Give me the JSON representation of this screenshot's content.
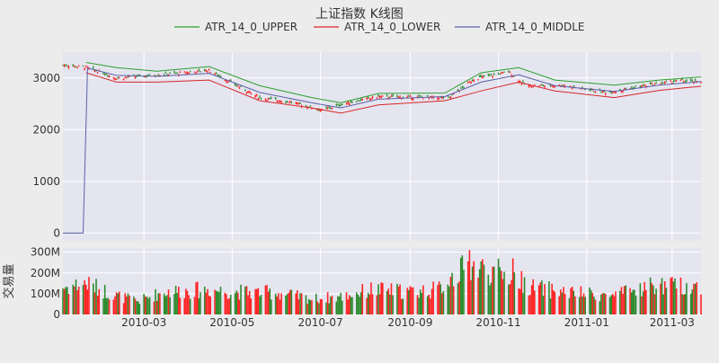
{
  "chart_data": {
    "type": "candlestick",
    "title": "上证指数 K线图",
    "legend": {
      "placement": "top-center",
      "entries": [
        {
          "name": "ATR_14_0_UPPER",
          "color": "#2ca02c"
        },
        {
          "name": "ATR_14_0_LOWER",
          "color": "#d62728"
        },
        {
          "name": "ATR_14_0_MIDDLE",
          "color": "#5b5fa8"
        }
      ]
    },
    "colors": {
      "up": "#ff2222",
      "down": "#2b8a2b",
      "upper": "#2ca02c",
      "lower": "#d62728",
      "middle": "#5b5fa8",
      "grid": "#ffffff",
      "plot_bg": "#e5e5f0"
    },
    "x_range": [
      "2010-01-04",
      "2011-03-21"
    ],
    "x_ticks": [
      {
        "date": "2010-03-01",
        "label": "2010-03"
      },
      {
        "date": "2010-05-01",
        "label": "2010-05"
      },
      {
        "date": "2010-07-01",
        "label": "2010-07"
      },
      {
        "date": "2010-09-01",
        "label": "2010-09"
      },
      {
        "date": "2010-11-01",
        "label": "2010-11"
      },
      {
        "date": "2011-01-01",
        "label": "2011-01"
      },
      {
        "date": "2011-03-01",
        "label": "2011-03"
      }
    ],
    "price_panel": {
      "ylim": [
        -150,
        3500
      ],
      "y_ticks": [
        {
          "value": 0,
          "label": "0"
        },
        {
          "value": 1000,
          "label": "1000"
        },
        {
          "value": 2000,
          "label": "2000"
        },
        {
          "value": 3000,
          "label": "3000"
        }
      ],
      "grid": true,
      "close_path": [
        [
          "2010-01-04",
          3250
        ],
        [
          "2010-01-20",
          3210
        ],
        [
          "2010-02-10",
          3000
        ],
        [
          "2010-03-01",
          3040
        ],
        [
          "2010-03-20",
          3080
        ],
        [
          "2010-04-15",
          3150
        ],
        [
          "2010-05-01",
          2900
        ],
        [
          "2010-05-20",
          2620
        ],
        [
          "2010-06-10",
          2540
        ],
        [
          "2010-07-02",
          2380
        ],
        [
          "2010-07-20",
          2520
        ],
        [
          "2010-08-10",
          2640
        ],
        [
          "2010-09-01",
          2630
        ],
        [
          "2010-09-28",
          2620
        ],
        [
          "2010-10-15",
          2980
        ],
        [
          "2010-11-08",
          3120
        ],
        [
          "2010-11-20",
          2850
        ],
        [
          "2010-12-15",
          2860
        ],
        [
          "2011-01-15",
          2720
        ],
        [
          "2011-02-10",
          2850
        ],
        [
          "2011-03-05",
          2950
        ],
        [
          "2011-03-21",
          2920
        ]
      ],
      "upper_path": [
        [
          "2010-01-20",
          3300
        ],
        [
          "2010-02-10",
          3200
        ],
        [
          "2010-03-10",
          3130
        ],
        [
          "2010-04-15",
          3220
        ],
        [
          "2010-05-20",
          2850
        ],
        [
          "2010-06-25",
          2620
        ],
        [
          "2010-07-15",
          2520
        ],
        [
          "2010-08-10",
          2700
        ],
        [
          "2010-09-25",
          2710
        ],
        [
          "2010-10-20",
          3100
        ],
        [
          "2010-11-15",
          3200
        ],
        [
          "2010-12-10",
          2960
        ],
        [
          "2011-01-20",
          2860
        ],
        [
          "2011-02-20",
          2960
        ],
        [
          "2011-03-21",
          3020
        ]
      ],
      "lower_path": [
        [
          "2010-01-20",
          3100
        ],
        [
          "2010-02-10",
          2920
        ],
        [
          "2010-03-10",
          2920
        ],
        [
          "2010-04-15",
          2960
        ],
        [
          "2010-05-20",
          2560
        ],
        [
          "2010-06-25",
          2420
        ],
        [
          "2010-07-15",
          2320
        ],
        [
          "2010-08-10",
          2480
        ],
        [
          "2010-09-25",
          2560
        ],
        [
          "2010-10-20",
          2750
        ],
        [
          "2010-11-15",
          2920
        ],
        [
          "2010-12-10",
          2750
        ],
        [
          "2011-01-20",
          2620
        ],
        [
          "2011-02-20",
          2760
        ],
        [
          "2011-03-21",
          2840
        ]
      ],
      "middle_path": [
        [
          "2010-01-04",
          0
        ],
        [
          "2010-01-18",
          0
        ],
        [
          "2010-01-21",
          3190
        ],
        [
          "2010-02-10",
          3050
        ],
        [
          "2010-03-10",
          3030
        ],
        [
          "2010-04-15",
          3090
        ],
        [
          "2010-05-20",
          2720
        ],
        [
          "2010-06-25",
          2520
        ],
        [
          "2010-07-15",
          2420
        ],
        [
          "2010-08-10",
          2590
        ],
        [
          "2010-09-25",
          2640
        ],
        [
          "2010-10-20",
          2920
        ],
        [
          "2010-11-15",
          3060
        ],
        [
          "2010-12-10",
          2850
        ],
        [
          "2011-01-20",
          2740
        ],
        [
          "2011-02-20",
          2860
        ],
        [
          "2011-03-21",
          2930
        ]
      ]
    },
    "volume_panel": {
      "ylabel": "交易量",
      "ylim": [
        0,
        320000000
      ],
      "y_ticks": [
        {
          "value": 0,
          "label": "0"
        },
        {
          "value": 100000000,
          "label": "100M"
        },
        {
          "value": 200000000,
          "label": "200M"
        },
        {
          "value": 300000000,
          "label": "300M"
        }
      ],
      "grid": true,
      "volume_path": [
        [
          "2010-01-04",
          130000000
        ],
        [
          "2010-01-20",
          150000000
        ],
        [
          "2010-02-10",
          90000000
        ],
        [
          "2010-02-25",
          65000000
        ],
        [
          "2010-03-15",
          110000000
        ],
        [
          "2010-04-15",
          120000000
        ],
        [
          "2010-05-01",
          110000000
        ],
        [
          "2010-06-01",
          105000000
        ],
        [
          "2010-06-25",
          75000000
        ],
        [
          "2010-07-15",
          85000000
        ],
        [
          "2010-08-05",
          120000000
        ],
        [
          "2010-09-01",
          110000000
        ],
        [
          "2010-09-20",
          120000000
        ],
        [
          "2010-10-08",
          220000000
        ],
        [
          "2010-10-15",
          230000000
        ],
        [
          "2010-11-08",
          190000000
        ],
        [
          "2010-11-25",
          130000000
        ],
        [
          "2010-12-20",
          105000000
        ],
        [
          "2011-01-20",
          90000000
        ],
        [
          "2011-02-15",
          140000000
        ],
        [
          "2011-03-21",
          135000000
        ]
      ],
      "volume_peaks": [
        [
          "2010-10-12",
          310000000
        ],
        [
          "2010-10-09",
          270000000
        ],
        [
          "2010-11-11",
          270000000
        ],
        [
          "2010-10-29",
          230000000
        ],
        [
          "2010-11-03",
          210000000
        ],
        [
          "2010-09-30",
          200000000
        ]
      ]
    }
  }
}
